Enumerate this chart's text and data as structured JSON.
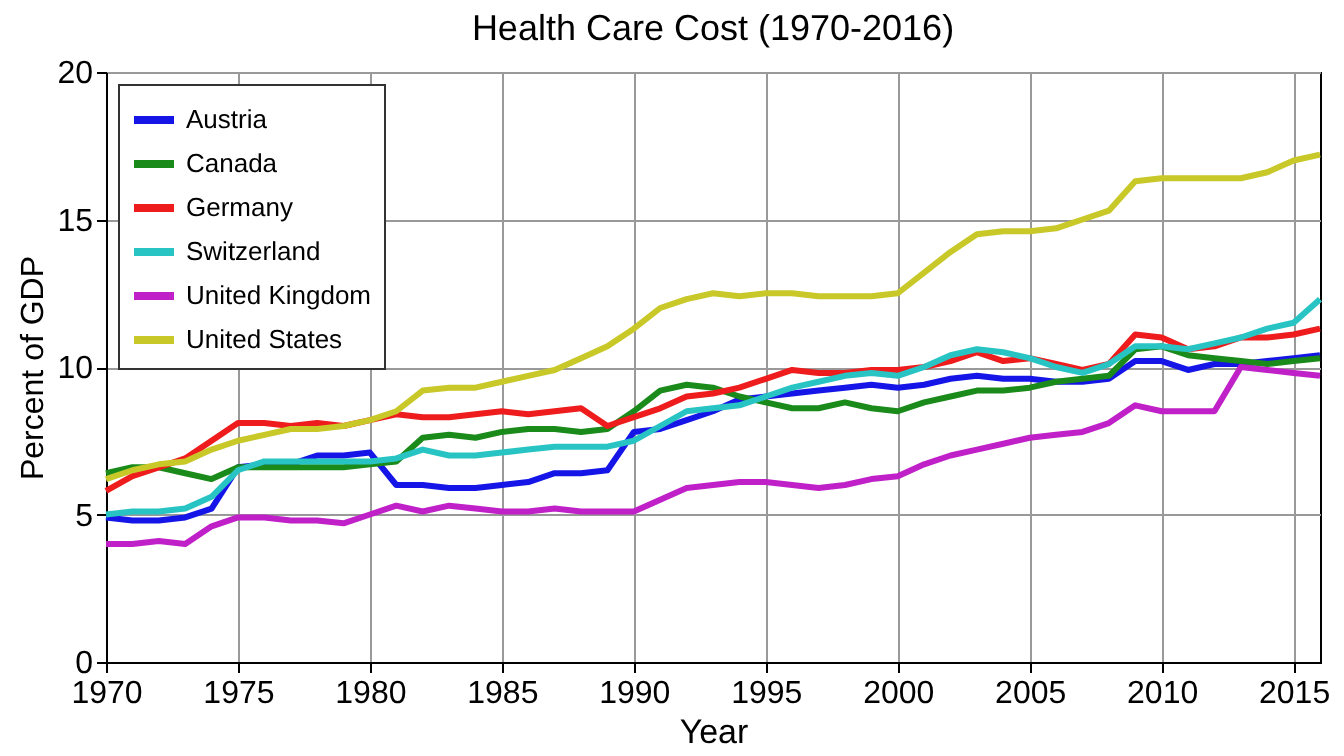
{
  "chart_data": {
    "type": "line",
    "title": "Health Care Cost (1970-2016)",
    "xlabel": "Year",
    "ylabel": "Percent of GDP",
    "x": [
      1970,
      1971,
      1972,
      1973,
      1974,
      1975,
      1976,
      1977,
      1978,
      1979,
      1980,
      1981,
      1982,
      1983,
      1984,
      1985,
      1986,
      1987,
      1988,
      1989,
      1990,
      1991,
      1992,
      1993,
      1994,
      1995,
      1996,
      1997,
      1998,
      1999,
      2000,
      2001,
      2002,
      2003,
      2004,
      2005,
      2006,
      2007,
      2008,
      2009,
      2010,
      2011,
      2012,
      2013,
      2014,
      2015,
      2016
    ],
    "series": [
      {
        "name": "Austria",
        "color": "#1515e8",
        "values": [
          4.9,
          4.8,
          4.8,
          4.9,
          5.2,
          6.6,
          6.7,
          6.7,
          7.0,
          7.0,
          7.1,
          6.0,
          6.0,
          5.9,
          5.9,
          6.0,
          6.1,
          6.4,
          6.4,
          6.5,
          7.8,
          7.9,
          8.2,
          8.5,
          8.9,
          9.0,
          9.1,
          9.2,
          9.3,
          9.4,
          9.3,
          9.4,
          9.6,
          9.7,
          9.6,
          9.6,
          9.5,
          9.5,
          9.6,
          10.2,
          10.2,
          9.9,
          10.1,
          10.1,
          10.2,
          10.3,
          10.4
        ]
      },
      {
        "name": "Canada",
        "color": "#1a8a1a",
        "values": [
          6.4,
          6.6,
          6.6,
          6.4,
          6.2,
          6.6,
          6.6,
          6.6,
          6.6,
          6.6,
          6.7,
          6.8,
          7.6,
          7.7,
          7.6,
          7.8,
          7.9,
          7.9,
          7.8,
          7.9,
          8.5,
          9.2,
          9.4,
          9.3,
          9.0,
          8.8,
          8.6,
          8.6,
          8.8,
          8.6,
          8.5,
          8.8,
          9.0,
          9.2,
          9.2,
          9.3,
          9.5,
          9.6,
          9.7,
          10.6,
          10.7,
          10.4,
          10.3,
          10.2,
          10.1,
          10.2,
          10.3
        ]
      },
      {
        "name": "Germany",
        "color": "#ee1c1c",
        "values": [
          5.8,
          6.3,
          6.6,
          6.9,
          7.5,
          8.1,
          8.1,
          8.0,
          8.1,
          8.0,
          8.2,
          8.4,
          8.3,
          8.3,
          8.4,
          8.5,
          8.4,
          8.5,
          8.6,
          8.0,
          8.3,
          8.6,
          9.0,
          9.1,
          9.3,
          9.6,
          9.9,
          9.8,
          9.8,
          9.9,
          9.9,
          10.0,
          10.2,
          10.5,
          10.2,
          10.3,
          10.1,
          9.9,
          10.1,
          11.1,
          11.0,
          10.6,
          10.7,
          11.0,
          11.0,
          11.1,
          11.3
        ]
      },
      {
        "name": "Switzerland",
        "color": "#28c4c4",
        "values": [
          5.0,
          5.1,
          5.1,
          5.2,
          5.6,
          6.5,
          6.8,
          6.8,
          6.8,
          6.8,
          6.8,
          6.9,
          7.2,
          7.0,
          7.0,
          7.1,
          7.2,
          7.3,
          7.3,
          7.3,
          7.5,
          8.0,
          8.5,
          8.6,
          8.7,
          9.0,
          9.3,
          9.5,
          9.7,
          9.8,
          9.7,
          10.0,
          10.4,
          10.6,
          10.5,
          10.3,
          10.0,
          9.8,
          10.1,
          10.7,
          10.7,
          10.6,
          10.8,
          11.0,
          11.3,
          11.5,
          12.3
        ]
      },
      {
        "name": "United Kingdom",
        "color": "#c020c8",
        "values": [
          4.0,
          4.0,
          4.1,
          4.0,
          4.6,
          4.9,
          4.9,
          4.8,
          4.8,
          4.7,
          5.0,
          5.3,
          5.1,
          5.3,
          5.2,
          5.1,
          5.1,
          5.2,
          5.1,
          5.1,
          5.1,
          5.5,
          5.9,
          6.0,
          6.1,
          6.1,
          6.0,
          5.9,
          6.0,
          6.2,
          6.3,
          6.7,
          7.0,
          7.2,
          7.4,
          7.6,
          7.7,
          7.8,
          8.1,
          8.7,
          8.5,
          8.5,
          8.5,
          10.0,
          9.9,
          9.8,
          9.7
        ]
      },
      {
        "name": "United States",
        "color": "#c8c828",
        "values": [
          6.2,
          6.5,
          6.7,
          6.8,
          7.2,
          7.5,
          7.7,
          7.9,
          7.9,
          8.0,
          8.2,
          8.5,
          9.2,
          9.3,
          9.3,
          9.5,
          9.7,
          9.9,
          10.3,
          10.7,
          11.3,
          12.0,
          12.3,
          12.5,
          12.4,
          12.5,
          12.5,
          12.4,
          12.4,
          12.4,
          12.5,
          13.2,
          13.9,
          14.5,
          14.6,
          14.6,
          14.7,
          15.0,
          15.3,
          16.3,
          16.4,
          16.4,
          16.4,
          16.4,
          16.6,
          17.0,
          17.2
        ]
      }
    ],
    "xlim": [
      1970,
      2016
    ],
    "xticks": [
      1970,
      1975,
      1980,
      1985,
      1990,
      1995,
      2000,
      2005,
      2010,
      2015
    ],
    "ylim": [
      0,
      20
    ],
    "yticks": [
      0,
      5,
      10,
      15,
      20
    ],
    "grid": true,
    "legend": "top left",
    "marker": "none",
    "line_style": "solid"
  }
}
